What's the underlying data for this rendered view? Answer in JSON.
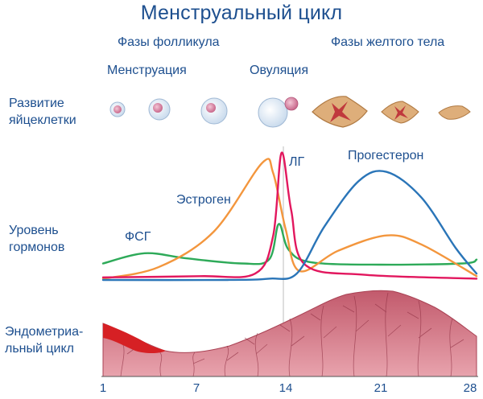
{
  "title": "Менструальный цикл",
  "headers": {
    "follicular": "Фазы фолликула",
    "luteal": "Фазы желтого тела"
  },
  "phase_labels": {
    "menstruation": "Менструация",
    "ovulation": "Овуляция"
  },
  "row_labels": {
    "egg_line1": "Развитие",
    "egg_line2": "яйцеклетки",
    "hormone_line1": "Уровень",
    "hormone_line2": "гормонов",
    "endo_line1": "Эндометриа-",
    "endo_line2": "льный цикл"
  },
  "hormone_labels": {
    "fsh": "ФСГ",
    "estrogen": "Эстроген",
    "lh": "ЛГ",
    "progesterone": "Прогестерон"
  },
  "colors": {
    "text": "#1d4f8f",
    "fsh": "#2eaa59",
    "estrogen": "#f3963d",
    "lh": "#e2175e",
    "progesterone": "#2a75b8",
    "endometrium": "#d5707f",
    "endometrium_dark": "#b44a5a",
    "menstrual_blood": "#d62024",
    "egg_fill": "#e2edf7",
    "corpus_luteum": "#deae7a"
  },
  "axis": {
    "ticks": [
      "1",
      "7",
      "14",
      "21",
      "28"
    ]
  },
  "chart_data": {
    "type": "line",
    "x_range": [
      1,
      28
    ],
    "series": [
      {
        "name": "ФСГ",
        "color": "#2eaa59",
        "points": [
          [
            1,
            0.13
          ],
          [
            4,
            0.21
          ],
          [
            7,
            0.17
          ],
          [
            11,
            0.13
          ],
          [
            13,
            0.16
          ],
          [
            13.7,
            0.44
          ],
          [
            14.4,
            0.24
          ],
          [
            16,
            0.14
          ],
          [
            21,
            0.12
          ],
          [
            27,
            0.13
          ],
          [
            28,
            0.16
          ]
        ]
      },
      {
        "name": "Эстроген",
        "color": "#f3963d",
        "points": [
          [
            1,
            0.01
          ],
          [
            5,
            0.1
          ],
          [
            9,
            0.38
          ],
          [
            12.5,
            0.92
          ],
          [
            13.3,
            0.84
          ],
          [
            14.2,
            0.4
          ],
          [
            15.2,
            0.07
          ],
          [
            18,
            0.23
          ],
          [
            21.5,
            0.35
          ],
          [
            24,
            0.28
          ],
          [
            28,
            0.03
          ]
        ]
      },
      {
        "name": "ЛГ",
        "color": "#e2175e",
        "points": [
          [
            1,
            0.02
          ],
          [
            8,
            0.03
          ],
          [
            12,
            0.05
          ],
          [
            13.3,
            0.35
          ],
          [
            13.9,
            1.0
          ],
          [
            14.6,
            0.55
          ],
          [
            15.6,
            0.12
          ],
          [
            20,
            0.04
          ],
          [
            28,
            0.01
          ]
        ]
      },
      {
        "name": "Прогестерон",
        "color": "#2a75b8",
        "points": [
          [
            1,
            0.0
          ],
          [
            10,
            0.0
          ],
          [
            13,
            0.01
          ],
          [
            15,
            0.05
          ],
          [
            17,
            0.42
          ],
          [
            19.5,
            0.78
          ],
          [
            21.5,
            0.85
          ],
          [
            24,
            0.65
          ],
          [
            26.5,
            0.25
          ],
          [
            28,
            0.05
          ]
        ]
      }
    ]
  }
}
